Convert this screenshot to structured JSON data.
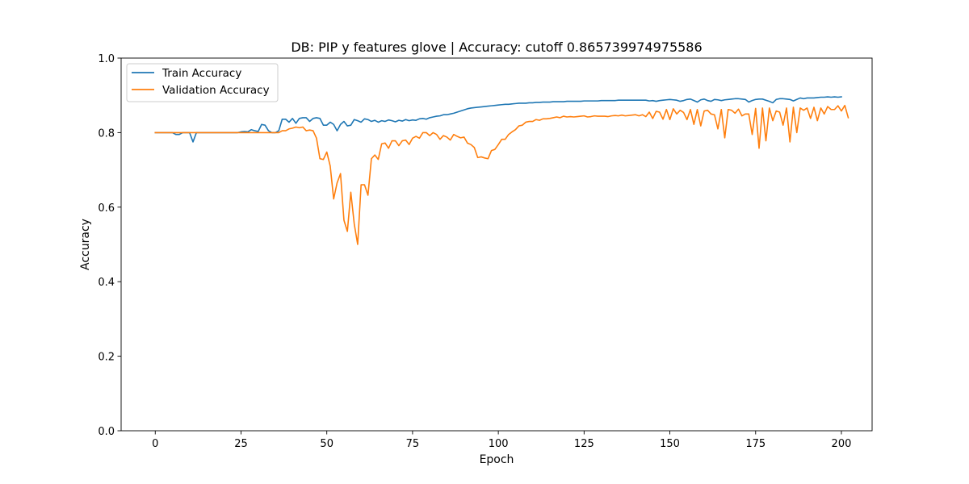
{
  "chart_data": {
    "type": "line",
    "title": "DB: PIP y features glove | Accuracy: cutoff 0.865739974975586",
    "xlabel": "Epoch",
    "ylabel": "Accuracy",
    "xlim": [
      -9.95,
      208.95
    ],
    "ylim": [
      0.0,
      1.0
    ],
    "xticks": [
      0,
      25,
      50,
      75,
      100,
      125,
      150,
      175,
      200
    ],
    "yticks": [
      0.0,
      0.2,
      0.4,
      0.6,
      0.8,
      1.0
    ],
    "xtick_labels": [
      "0",
      "25",
      "50",
      "75",
      "100",
      "125",
      "150",
      "175",
      "200"
    ],
    "ytick_labels": [
      "0.0",
      "0.2",
      "0.4",
      "0.6",
      "0.8",
      "1.0"
    ],
    "grid": false,
    "legend_position": "top-left",
    "series": [
      {
        "name": "Train Accuracy",
        "color": "#1f77b4",
        "values": [
          0.8,
          0.8,
          0.8,
          0.8,
          0.8,
          0.8,
          0.795,
          0.795,
          0.8,
          0.8,
          0.8,
          0.775,
          0.8,
          0.8,
          0.8,
          0.8,
          0.8,
          0.8,
          0.8,
          0.8,
          0.8,
          0.8,
          0.8,
          0.8,
          0.8,
          0.802,
          0.803,
          0.802,
          0.808,
          0.805,
          0.803,
          0.822,
          0.82,
          0.805,
          0.8,
          0.8,
          0.805,
          0.836,
          0.836,
          0.828,
          0.838,
          0.825,
          0.838,
          0.84,
          0.84,
          0.83,
          0.838,
          0.84,
          0.838,
          0.82,
          0.82,
          0.828,
          0.822,
          0.805,
          0.822,
          0.83,
          0.818,
          0.82,
          0.835,
          0.832,
          0.828,
          0.837,
          0.835,
          0.83,
          0.833,
          0.828,
          0.832,
          0.83,
          0.834,
          0.832,
          0.829,
          0.833,
          0.831,
          0.835,
          0.832,
          0.834,
          0.833,
          0.837,
          0.838,
          0.836,
          0.84,
          0.842,
          0.844,
          0.845,
          0.848,
          0.848,
          0.85,
          0.852,
          0.855,
          0.858,
          0.861,
          0.864,
          0.866,
          0.867,
          0.868,
          0.869,
          0.87,
          0.871,
          0.872,
          0.873,
          0.874,
          0.875,
          0.876,
          0.876,
          0.877,
          0.878,
          0.879,
          0.879,
          0.879,
          0.88,
          0.88,
          0.881,
          0.881,
          0.882,
          0.882,
          0.882,
          0.883,
          0.883,
          0.883,
          0.883,
          0.884,
          0.884,
          0.884,
          0.884,
          0.884,
          0.885,
          0.885,
          0.885,
          0.885,
          0.885,
          0.886,
          0.886,
          0.886,
          0.886,
          0.886,
          0.887,
          0.887,
          0.887,
          0.887,
          0.887,
          0.887,
          0.887,
          0.887,
          0.887,
          0.885,
          0.886,
          0.884,
          0.886,
          0.887,
          0.888,
          0.889,
          0.888,
          0.887,
          0.884,
          0.886,
          0.889,
          0.89,
          0.886,
          0.882,
          0.888,
          0.89,
          0.886,
          0.884,
          0.889,
          0.888,
          0.886,
          0.888,
          0.889,
          0.89,
          0.891,
          0.891,
          0.89,
          0.889,
          0.882,
          0.886,
          0.889,
          0.89,
          0.89,
          0.887,
          0.884,
          0.88,
          0.889,
          0.891,
          0.891,
          0.89,
          0.889,
          0.885,
          0.889,
          0.893,
          0.891,
          0.893,
          0.893,
          0.893,
          0.894,
          0.895,
          0.895,
          0.896,
          0.895,
          0.896,
          0.895,
          0.896
        ]
      },
      {
        "name": "Validation Accuracy",
        "color": "#ff7f0e",
        "values": [
          0.8,
          0.8,
          0.8,
          0.8,
          0.8,
          0.8,
          0.8,
          0.8,
          0.8,
          0.8,
          0.8,
          0.8,
          0.8,
          0.8,
          0.8,
          0.8,
          0.8,
          0.8,
          0.8,
          0.8,
          0.8,
          0.8,
          0.8,
          0.8,
          0.8,
          0.8,
          0.8,
          0.8,
          0.8,
          0.8,
          0.8,
          0.8,
          0.8,
          0.8,
          0.8,
          0.8,
          0.8,
          0.805,
          0.805,
          0.81,
          0.812,
          0.815,
          0.813,
          0.815,
          0.805,
          0.807,
          0.805,
          0.785,
          0.73,
          0.728,
          0.748,
          0.71,
          0.622,
          0.665,
          0.69,
          0.565,
          0.535,
          0.64,
          0.555,
          0.5,
          0.66,
          0.66,
          0.632,
          0.73,
          0.74,
          0.728,
          0.77,
          0.772,
          0.758,
          0.778,
          0.778,
          0.765,
          0.778,
          0.78,
          0.768,
          0.785,
          0.79,
          0.785,
          0.8,
          0.8,
          0.792,
          0.8,
          0.795,
          0.782,
          0.792,
          0.788,
          0.78,
          0.795,
          0.79,
          0.786,
          0.788,
          0.772,
          0.768,
          0.76,
          0.733,
          0.735,
          0.732,
          0.73,
          0.752,
          0.755,
          0.768,
          0.782,
          0.782,
          0.795,
          0.802,
          0.808,
          0.818,
          0.82,
          0.828,
          0.83,
          0.83,
          0.835,
          0.833,
          0.837,
          0.837,
          0.838,
          0.84,
          0.842,
          0.84,
          0.844,
          0.842,
          0.843,
          0.842,
          0.843,
          0.844,
          0.845,
          0.842,
          0.843,
          0.845,
          0.844,
          0.844,
          0.844,
          0.843,
          0.845,
          0.846,
          0.845,
          0.847,
          0.845,
          0.846,
          0.847,
          0.848,
          0.845,
          0.848,
          0.843,
          0.855,
          0.838,
          0.857,
          0.855,
          0.836,
          0.862,
          0.835,
          0.864,
          0.85,
          0.86,
          0.854,
          0.835,
          0.862,
          0.822,
          0.862,
          0.818,
          0.858,
          0.86,
          0.85,
          0.848,
          0.81,
          0.862,
          0.786,
          0.862,
          0.86,
          0.852,
          0.863,
          0.845,
          0.85,
          0.85,
          0.795,
          0.865,
          0.758,
          0.866,
          0.778,
          0.866,
          0.832,
          0.858,
          0.855,
          0.82,
          0.866,
          0.775,
          0.868,
          0.8,
          0.866,
          0.86,
          0.866,
          0.838,
          0.868,
          0.832,
          0.866,
          0.85,
          0.87,
          0.862,
          0.862,
          0.872,
          0.858,
          0.873,
          0.84
        ]
      }
    ]
  }
}
